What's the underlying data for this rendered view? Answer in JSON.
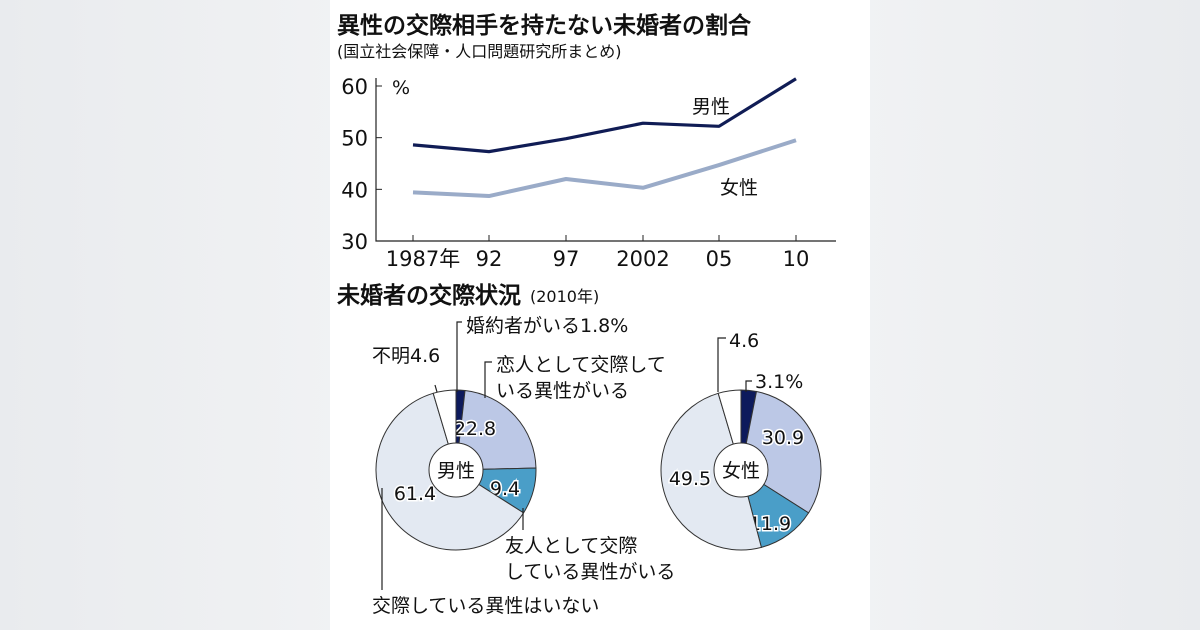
{
  "chart_data": [
    {
      "type": "line",
      "title": "異性の交際相手を持たない未婚者の割合",
      "subtitle": "(国立社会保障・人口問題研究所まとめ)",
      "ylabel": "%",
      "ylim": [
        30,
        60
      ],
      "yticks": [
        "30",
        "40",
        "50",
        "60"
      ],
      "categories": [
        "1987年",
        "92",
        "97",
        "2002",
        "05",
        "10"
      ],
      "series": [
        {
          "name": "男性",
          "color": "#101c55",
          "values": [
            48.6,
            47.3,
            49.8,
            52.8,
            52.2,
            61.4
          ]
        },
        {
          "name": "女性",
          "color": "#9aabc8",
          "values": [
            39.4,
            38.7,
            42.0,
            40.3,
            44.7,
            49.5
          ]
        }
      ],
      "grid": false
    },
    {
      "type": "pie",
      "title": "未婚者の交際状況",
      "title_note": "(2010年)",
      "categories": [
        "婚約者がいる",
        "恋人として交際している異性がいる",
        "友人として交際している異性がいる",
        "交際している異性はいない",
        "不明"
      ],
      "category_labels": {
        "engaged": "婚約者がいる1.8%",
        "lover_1": "恋人として交際して",
        "lover_2": "いる異性がいる",
        "friend_1": "友人として交際",
        "friend_2": "している異性がいる",
        "none": "交際している異性はいない",
        "unknown": "不明4.6"
      },
      "colors": [
        "#0d1a5c",
        "#bcc8e6",
        "#4a9ec8",
        "#e3e9f2",
        "#ffffff"
      ],
      "series": [
        {
          "name": "男性",
          "values": [
            1.8,
            22.8,
            9.4,
            61.4,
            4.6
          ],
          "labels": [
            "",
            "22.8",
            "9.4",
            "61.4",
            ""
          ]
        },
        {
          "name": "女性",
          "values": [
            3.1,
            30.9,
            11.9,
            49.5,
            4.6
          ],
          "labels": [
            "3.1%",
            "30.9",
            "11.9",
            "49.5",
            "4.6"
          ]
        }
      ]
    }
  ]
}
